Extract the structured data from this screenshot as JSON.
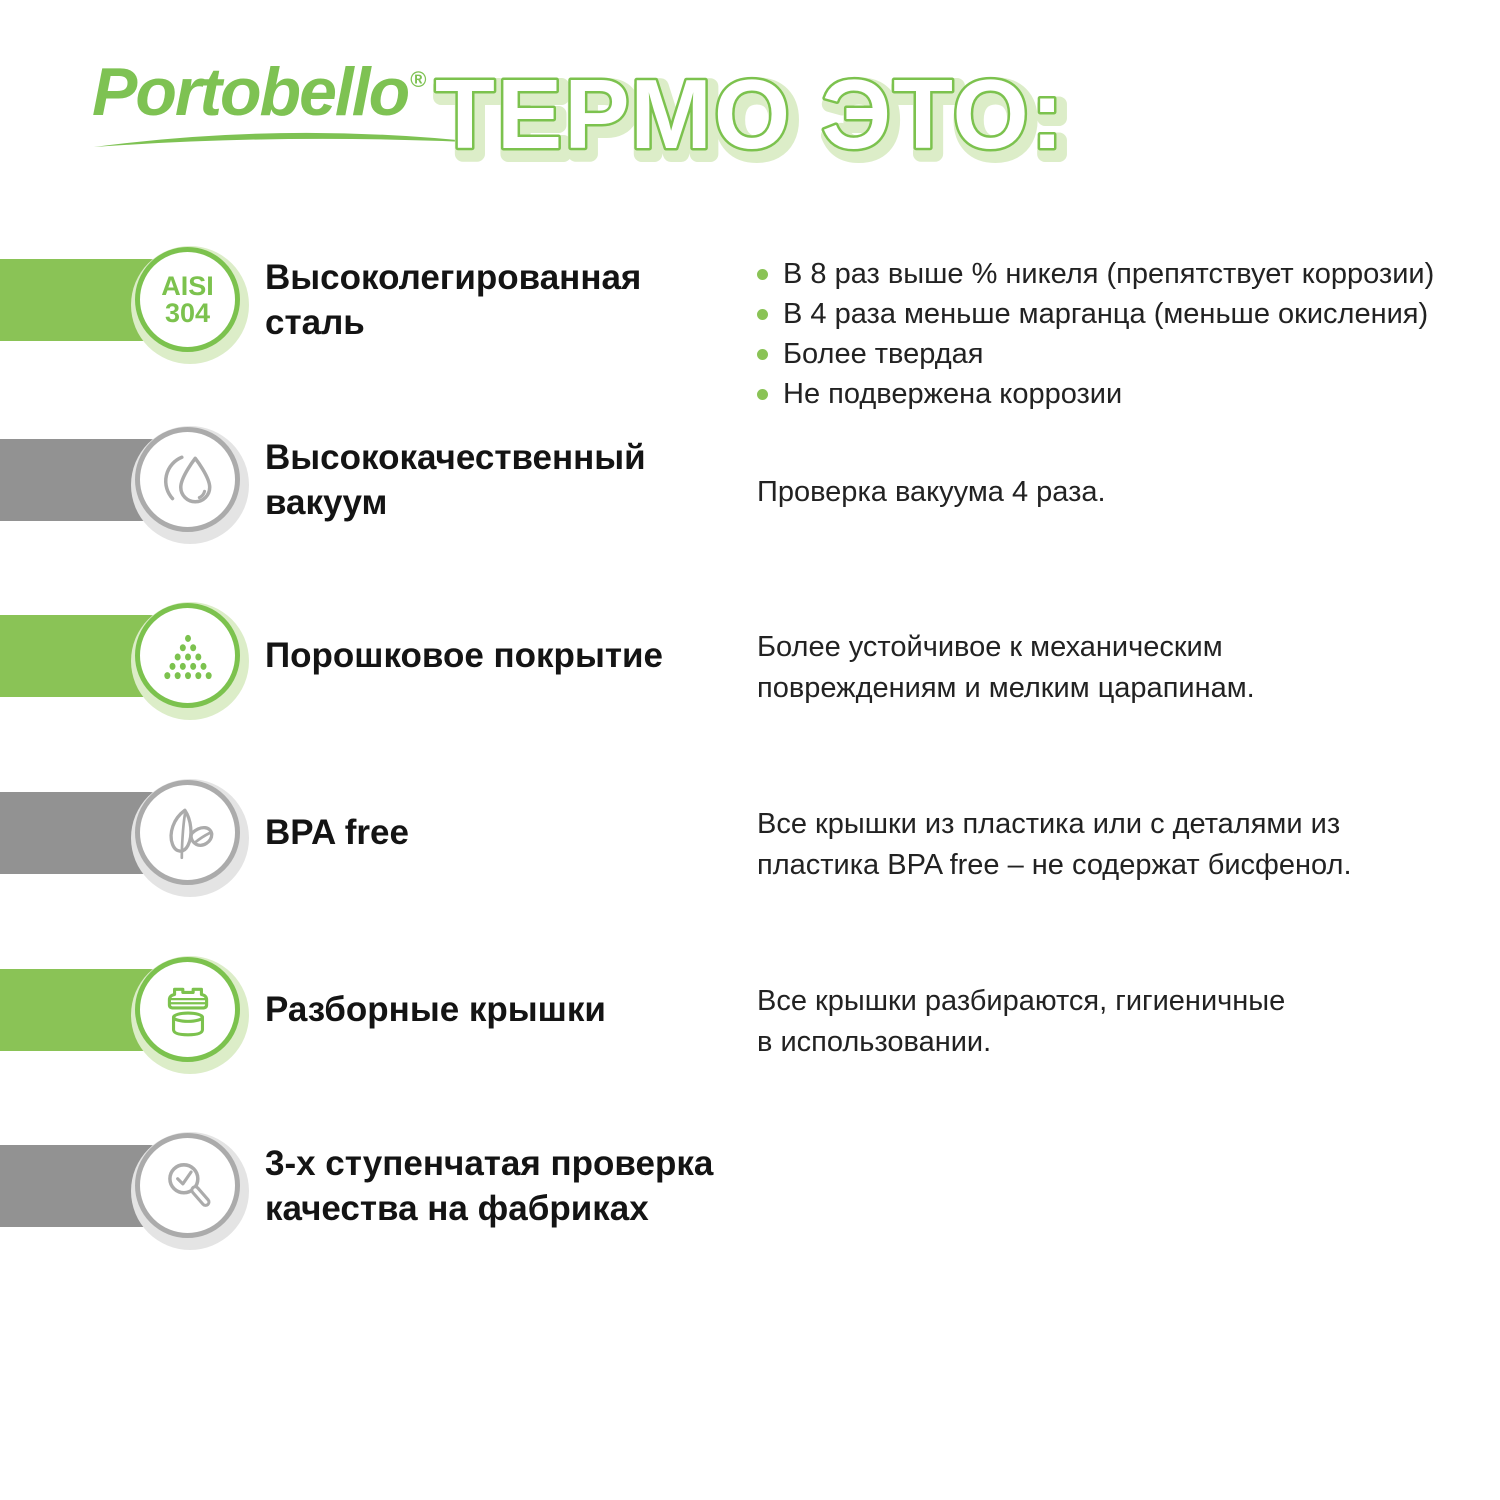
{
  "header": {
    "brand": "Portobello",
    "registered_mark": "®",
    "title": "ТЕРМО ЭТО:"
  },
  "colors": {
    "green": "#8ac356",
    "green_stroke": "#7cc24e",
    "green_halo": "#dcedc8",
    "logo_green": "#7ec253",
    "gray": "#929292",
    "gray_border": "#ababab",
    "gray_halo": "#e4e4e4",
    "heading_text": "#141414",
    "body_text": "#222222",
    "title_fill": "#ffffff"
  },
  "features": [
    {
      "icon": "aisi-304-badge",
      "icon_text": [
        "AISI",
        "304"
      ],
      "accent": "green",
      "heading": "Высоколегированная\nсталь",
      "bullets": [
        "В 8 раз выше % никеля (препятствует коррозии)",
        "В 4 раза меньше марганца (меньше окисления)",
        "Более твердая",
        "Не подвержена коррозии"
      ]
    },
    {
      "icon": "water-drop-icon",
      "accent": "gray",
      "heading": "Высококачественный\nвакуум",
      "description": "Проверка вакуума 4 раза."
    },
    {
      "icon": "powder-dots-icon",
      "accent": "green",
      "heading": "Порошковое покрытие",
      "description": "Более устойчивое к механическим\nповреждениям и мелким царапинам."
    },
    {
      "icon": "leaves-icon",
      "accent": "gray",
      "heading": "BPA free",
      "description": "Все крышки из пластика или с деталями из\nпластика BPA free – не содержат бисфенол."
    },
    {
      "icon": "lid-parts-icon",
      "accent": "green",
      "heading": "Разборные крышки",
      "description": "Все крышки разбираются, гигиеничные\nв использовании."
    },
    {
      "icon": "magnifier-check-icon",
      "accent": "gray",
      "heading": "3-х ступенчатая проверка\nкачества на фабриках"
    }
  ]
}
